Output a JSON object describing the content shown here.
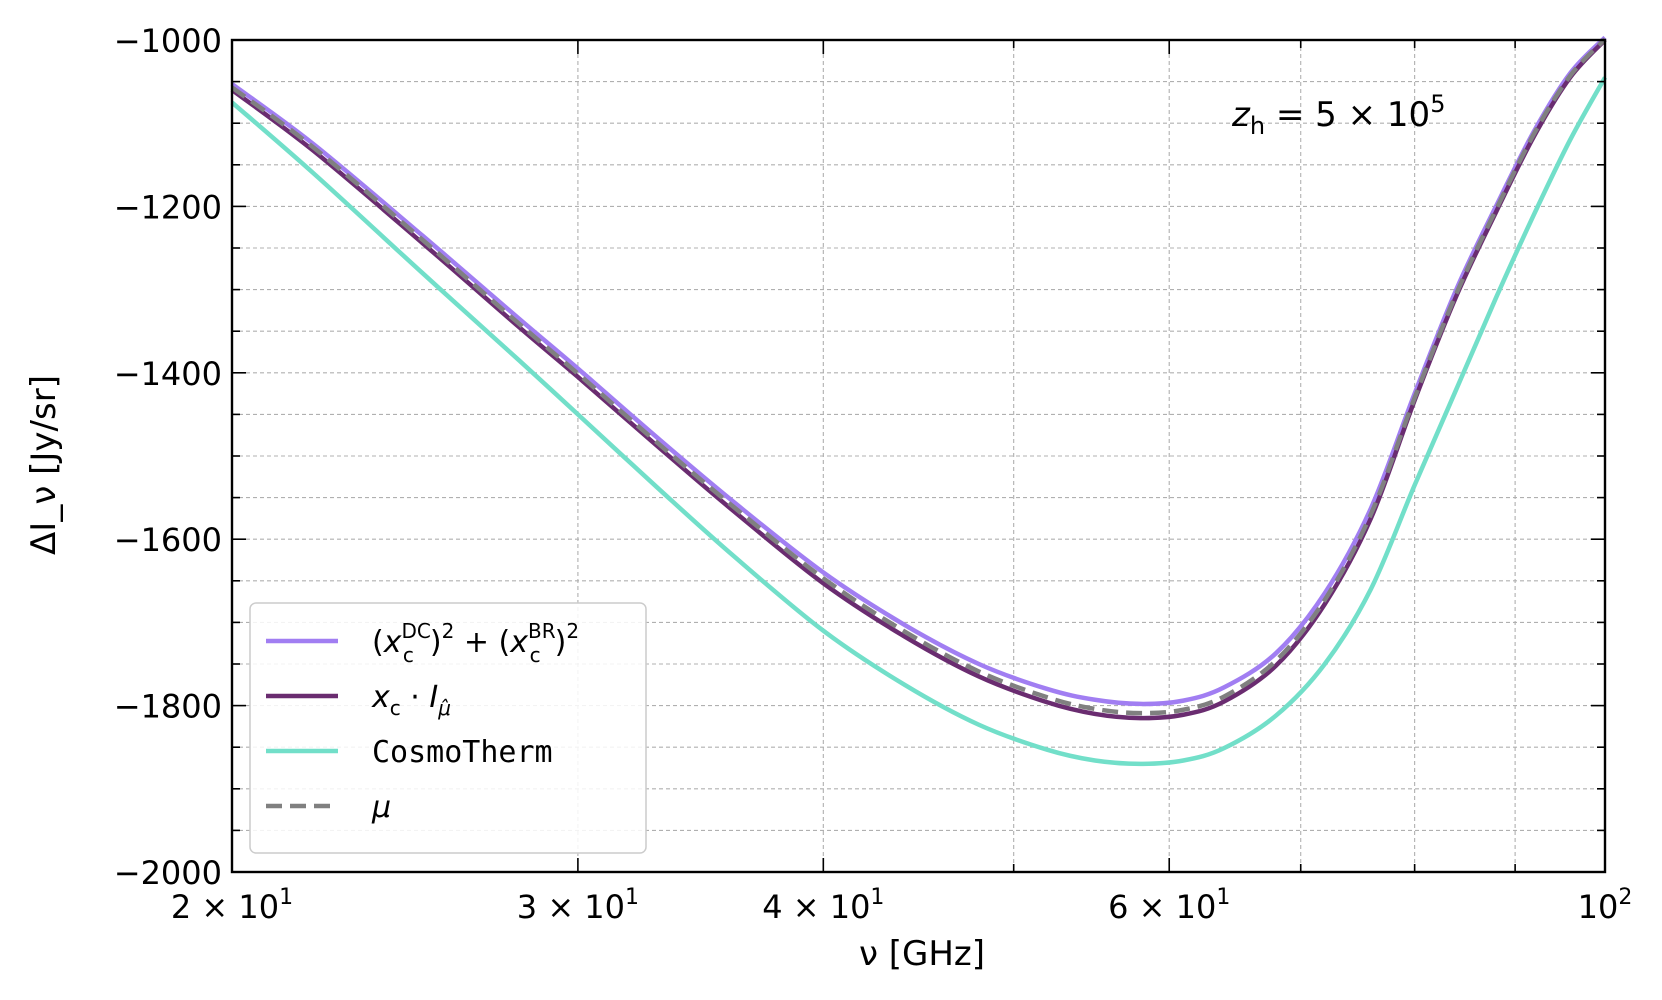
{
  "chart_data": {
    "type": "line",
    "x_scale": "log",
    "xlim": [
      20,
      100
    ],
    "ylim": [
      -2000,
      -1000
    ],
    "xlabel": "ν [GHz]",
    "ylabel": "ΔI_ν [Jy/sr]",
    "x_ticks": [
      {
        "value": 20,
        "base": "2 × 10",
        "exp": "1"
      },
      {
        "value": 30,
        "base": "3 × 10",
        "exp": "1"
      },
      {
        "value": 40,
        "base": "4 × 10",
        "exp": "1"
      },
      {
        "value": 60,
        "base": "6 × 10",
        "exp": "1"
      },
      {
        "value": 100,
        "base": "10",
        "exp": "2"
      }
    ],
    "x_minor_ticks": [
      50,
      70,
      80,
      90
    ],
    "y_ticks": [
      -1000,
      -1200,
      -1400,
      -1600,
      -1800,
      -2000
    ],
    "y_tick_labels": [
      "−1000",
      "−1200",
      "−1400",
      "−1600",
      "−1800",
      "−2000"
    ],
    "y_minor_step": 50,
    "grid": true,
    "legend_position": "lower-left",
    "annotation": {
      "main": "z",
      "sub": "h",
      "rest": " = 5 × 10",
      "sup": "5"
    },
    "x": [
      20,
      22,
      25,
      28,
      30,
      33,
      36,
      40,
      44,
      48,
      52,
      55,
      58,
      61,
      64,
      68,
      72,
      76,
      80,
      84,
      88,
      92,
      96,
      100
    ],
    "series": [
      {
        "name": "(x_c^DC)^2 + (x_c^BR)^2",
        "color": "#a17ef2",
        "dash": false,
        "values": [
          -1053,
          -1125,
          -1235,
          -1335,
          -1395,
          -1480,
          -1555,
          -1640,
          -1703,
          -1750,
          -1780,
          -1793,
          -1798,
          -1794,
          -1778,
          -1737,
          -1665,
          -1563,
          -1425,
          -1300,
          -1200,
          -1110,
          -1040,
          -997
        ]
      },
      {
        "name": "x_c · I_μ̂",
        "color": "#6a2c70",
        "dash": false,
        "values": [
          -1060,
          -1133,
          -1244,
          -1345,
          -1405,
          -1490,
          -1566,
          -1653,
          -1717,
          -1765,
          -1796,
          -1810,
          -1815,
          -1811,
          -1795,
          -1752,
          -1678,
          -1575,
          -1433,
          -1308,
          -1207,
          -1116,
          -1045,
          -1000
        ]
      },
      {
        "name": "CosmoTherm",
        "color": "#72dfc9",
        "dash": false,
        "values": [
          -1075,
          -1160,
          -1280,
          -1385,
          -1450,
          -1540,
          -1620,
          -1710,
          -1775,
          -1823,
          -1853,
          -1866,
          -1870,
          -1866,
          -1851,
          -1812,
          -1750,
          -1660,
          -1535,
          -1420,
          -1310,
          -1210,
          -1120,
          -1045
        ]
      },
      {
        "name": "μ",
        "color": "#808080",
        "dash": true,
        "values": [
          -1057,
          -1129,
          -1240,
          -1341,
          -1401,
          -1486,
          -1561,
          -1647,
          -1711,
          -1759,
          -1790,
          -1804,
          -1809,
          -1805,
          -1789,
          -1746,
          -1673,
          -1570,
          -1430,
          -1305,
          -1204,
          -1113,
          -1043,
          -999
        ]
      }
    ]
  }
}
